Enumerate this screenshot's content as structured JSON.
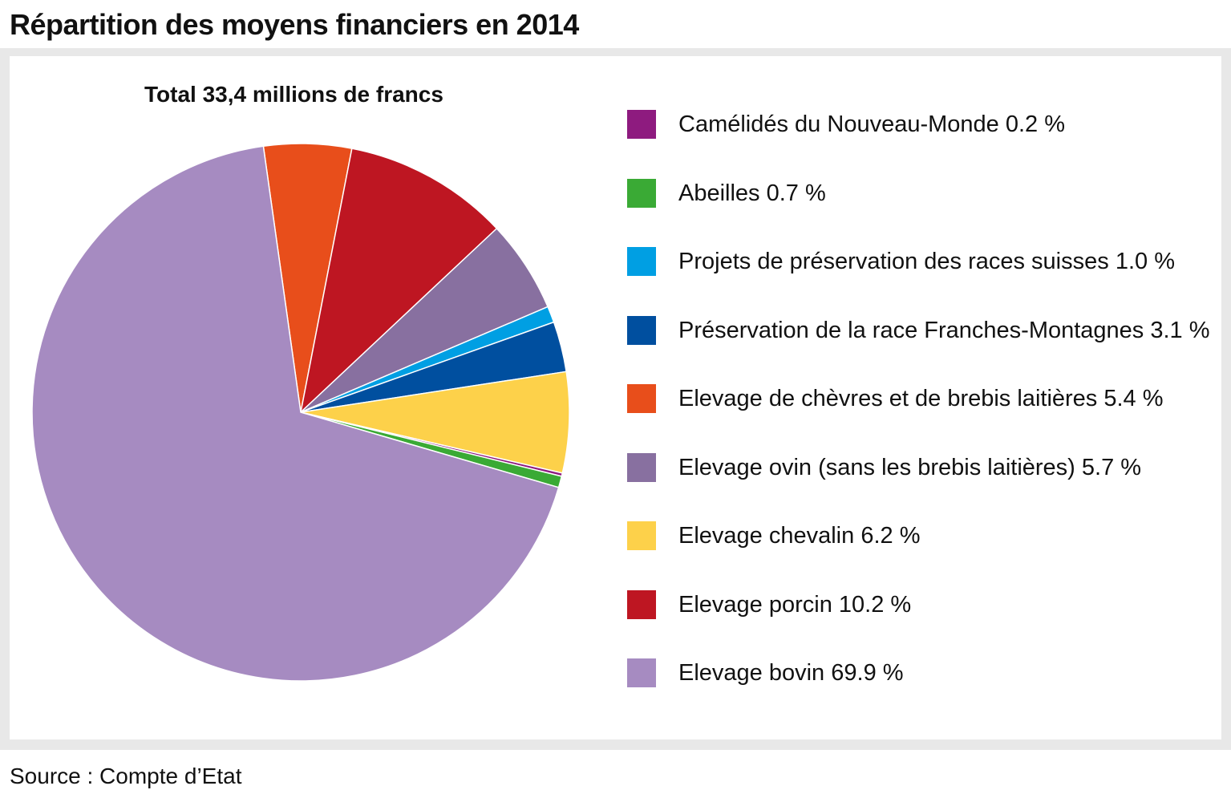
{
  "header": {
    "title": "Répartition des moyens financiers en 2014"
  },
  "footer": {
    "source": "Source : Compte d’Etat"
  },
  "chart_data": {
    "type": "pie",
    "title": "Total 33,4 millions de francs",
    "unit": "%",
    "legend_position": "right",
    "slices": [
      {
        "label": "Camélidés du Nouveau-Monde",
        "value_label": "0.2 %",
        "value": 0.2,
        "color": "#8e1b7f"
      },
      {
        "label": "Abeilles",
        "value_label": "0.7 %",
        "value": 0.7,
        "color": "#3aaa35"
      },
      {
        "label": "Projets de préservation des races suisses",
        "value_label": "1.0 %",
        "value": 1.0,
        "color": "#009fe3"
      },
      {
        "label": "Préservation de la race Franches-Montagnes",
        "value_label": "3.1 %",
        "value": 3.1,
        "color": "#004f9f"
      },
      {
        "label": "Elevage de chèvres et de brebis laitières",
        "value_label": "5.4 %",
        "value": 5.4,
        "color": "#e84e1b"
      },
      {
        "label": "Elevage ovin (sans les brebis laitières)",
        "value_label": "5.7 %",
        "value": 5.7,
        "color": "#8870a0"
      },
      {
        "label": "Elevage chevalin",
        "value_label": "6.2 %",
        "value": 6.2,
        "color": "#fdd14a"
      },
      {
        "label": "Elevage porcin",
        "value_label": "10.2 %",
        "value": 10.2,
        "color": "#be1622"
      },
      {
        "label": "Elevage bovin",
        "value_label": "69.9 %",
        "value": 69.9,
        "color": "#a68bc1"
      }
    ],
    "pie_order": [
      "Elevage de chèvres et de brebis laitières",
      "Elevage porcin",
      "Elevage ovin (sans les brebis laitières)",
      "Projets de préservation des races suisses",
      "Préservation de la race Franches-Montagnes",
      "Elevage chevalin",
      "Camélidés du Nouveau-Monde",
      "Abeilles",
      "Elevage bovin"
    ]
  }
}
